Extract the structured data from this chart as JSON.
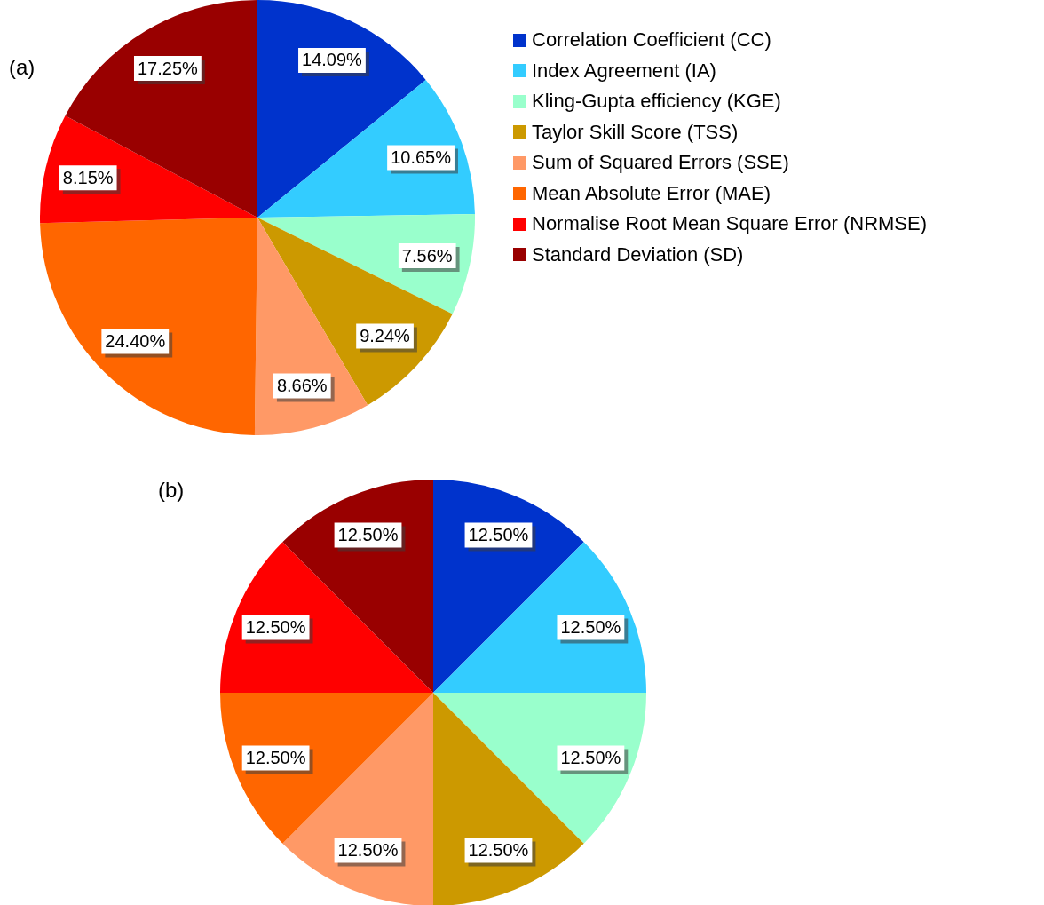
{
  "chart_data": [
    {
      "type": "pie",
      "title": "(a)",
      "categories": [
        "Correlation Coefficient (CC)",
        "Index Agreement (IA)",
        "Kling-Gupta efficiency (KGE)",
        "Taylor Skill Score (TSS)",
        "Sum of Squared Errors (SSE)",
        "Mean Absolute Error (MAE)",
        "Normalise Root Mean Square Error (NRMSE)",
        "Standard Deviation (SD)"
      ],
      "values": [
        14.09,
        10.65,
        7.56,
        9.24,
        8.66,
        24.4,
        8.15,
        17.25
      ],
      "value_labels": [
        "14.09%",
        "10.65%",
        "7.56%",
        "9.24%",
        "8.66%",
        "24.40%",
        "8.15%",
        "17.25%"
      ],
      "colors": [
        "#0033cc",
        "#33ccff",
        "#99ffcc",
        "#cc9900",
        "#ff9966",
        "#ff6600",
        "#ff0000",
        "#990000"
      ],
      "legend": "right"
    },
    {
      "type": "pie",
      "title": "(b)",
      "categories": [
        null,
        null,
        null,
        null,
        null,
        null,
        null,
        null
      ],
      "values": [
        12.5,
        12.5,
        12.5,
        12.5,
        12.5,
        12.5,
        12.5,
        12.5
      ],
      "value_labels": [
        "12.50%",
        "12.50%",
        "12.50%",
        "12.50%",
        "12.50%",
        "12.50%",
        "12.50%",
        "12.50%"
      ],
      "colors": [
        "#0033cc",
        "#33ccff",
        "#99ffcc",
        "#cc9900",
        "#ff9966",
        "#ff6600",
        "#ff0000",
        "#990000"
      ],
      "legend": false
    }
  ]
}
